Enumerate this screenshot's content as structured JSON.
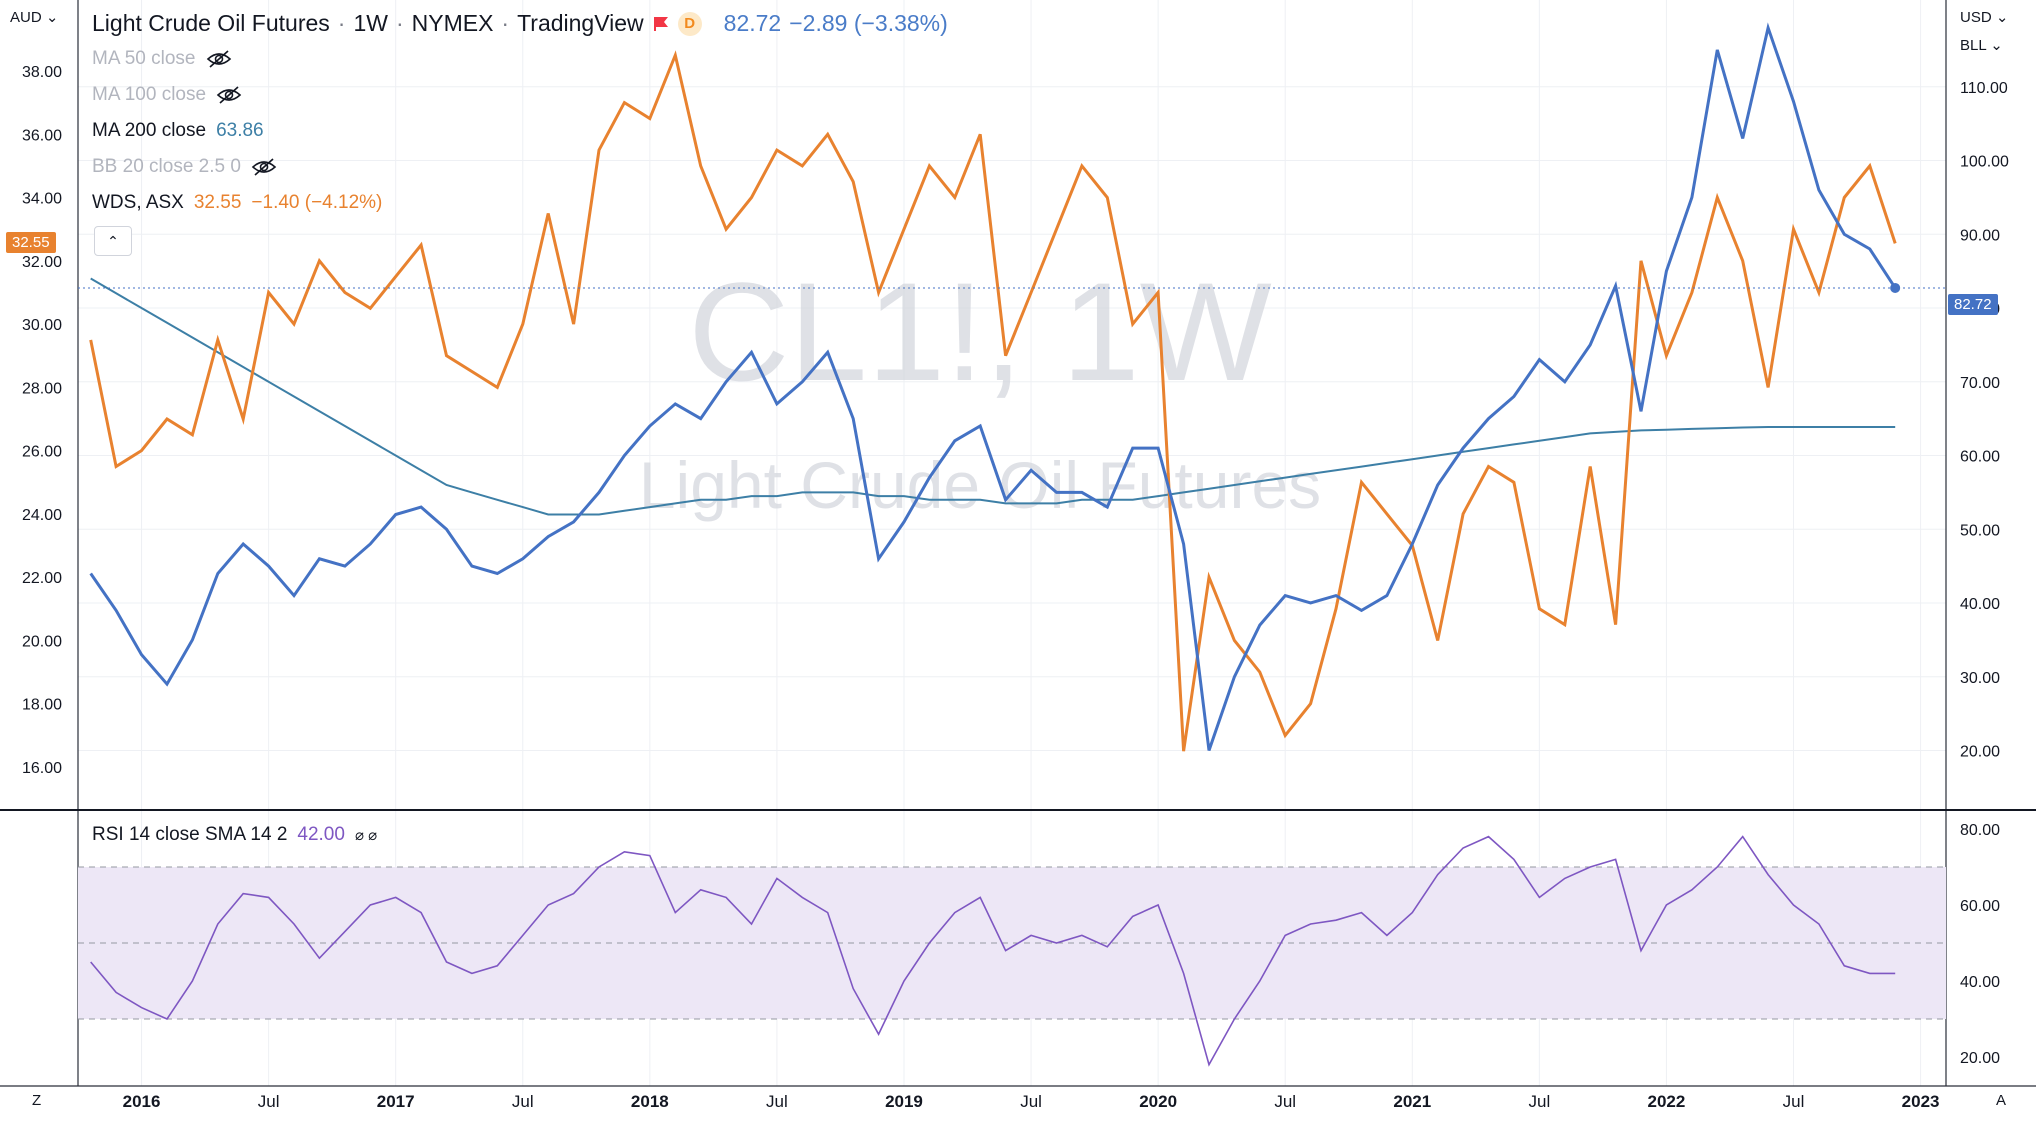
{
  "header": {
    "symbol_name": "Light Crude Oil Futures",
    "interval": "1W",
    "exchange": "NYMEX",
    "source": "TradingView",
    "badge_letter": "D",
    "last": "82.72",
    "change": "−2.89 (−3.38%)"
  },
  "indicators": [
    {
      "label": "MA 50 close",
      "visible": false
    },
    {
      "label": "MA 100 close",
      "visible": false
    },
    {
      "label": "MA 200 close",
      "value": "63.86",
      "visible": true
    },
    {
      "label": "BB 20 close 2.5 0",
      "visible": false
    }
  ],
  "compare": {
    "label": "WDS, ASX",
    "value": "32.55",
    "change": "−1.40 (−4.12%)"
  },
  "watermark": {
    "line1": "CL1!, 1W",
    "line2": "Light Crude Oil Futures"
  },
  "axes": {
    "left_currency": "AUD",
    "right_currency": "USD",
    "right_unit": "BLL",
    "left_ticks": [
      "38.00",
      "36.00",
      "34.00",
      "32.00",
      "30.00",
      "28.00",
      "26.00",
      "24.00",
      "22.00",
      "20.00",
      "18.00",
      "16.00"
    ],
    "right_ticks": [
      "110.00",
      "100.00",
      "90.00",
      "80.00",
      "70.00",
      "60.00",
      "50.00",
      "40.00",
      "30.00",
      "20.00"
    ],
    "rsi_ticks": [
      "80.00",
      "60.00",
      "40.00",
      "20.00"
    ],
    "x_ticks": [
      "2016",
      "Jul",
      "2017",
      "Jul",
      "2018",
      "Jul",
      "2019",
      "Jul",
      "2020",
      "Jul",
      "2021",
      "Jul",
      "2022",
      "Jul",
      "2023"
    ],
    "left_price_tag": "32.55",
    "right_price_tag": "82.72"
  },
  "rsi": {
    "label": "RSI 14 close SMA 14 2",
    "value": "42.00",
    "symbols": "⌀ ⌀",
    "band_upper": 70,
    "band_mid": 50,
    "band_lower": 30
  },
  "controls": {
    "bottom_left": "Z",
    "bottom_right": "A"
  },
  "colors": {
    "crude": "#4472c4",
    "wds": "#e8822f",
    "ma200": "#3d7fa6",
    "rsi": "#7e57c2",
    "rsi_band": "#ede7f6",
    "text_faded": "#b2b5be"
  },
  "chart_data": {
    "type": "line",
    "x": [
      2015.8,
      2015.9,
      2016.0,
      2016.1,
      2016.2,
      2016.3,
      2016.4,
      2016.5,
      2016.6,
      2016.7,
      2016.8,
      2016.9,
      2017.0,
      2017.1,
      2017.2,
      2017.3,
      2017.4,
      2017.5,
      2017.6,
      2017.7,
      2017.8,
      2017.9,
      2018.0,
      2018.1,
      2018.2,
      2018.3,
      2018.4,
      2018.5,
      2018.6,
      2018.7,
      2018.8,
      2018.9,
      2019.0,
      2019.1,
      2019.2,
      2019.3,
      2019.4,
      2019.5,
      2019.6,
      2019.7,
      2019.8,
      2019.9,
      2020.0,
      2020.1,
      2020.2,
      2020.3,
      2020.4,
      2020.5,
      2020.6,
      2020.7,
      2020.8,
      2020.9,
      2021.0,
      2021.1,
      2021.2,
      2021.3,
      2021.4,
      2021.5,
      2021.6,
      2021.7,
      2021.8,
      2021.9,
      2022.0,
      2022.1,
      2022.2,
      2022.3,
      2022.4,
      2022.5,
      2022.6,
      2022.7,
      2022.8,
      2022.9
    ],
    "series": [
      {
        "name": "Light Crude Oil Futures",
        "axis": "right",
        "values": [
          44,
          39,
          33,
          29,
          35,
          44,
          48,
          45,
          41,
          46,
          45,
          48,
          52,
          53,
          50,
          45,
          44,
          46,
          49,
          51,
          55,
          60,
          64,
          67,
          65,
          70,
          74,
          67,
          70,
          74,
          65,
          46,
          51,
          57,
          62,
          64,
          54,
          58,
          55,
          55,
          53,
          61,
          61,
          48,
          20,
          30,
          37,
          41,
          40,
          41,
          39,
          41,
          48,
          56,
          61,
          65,
          68,
          73,
          70,
          75,
          83,
          66,
          85,
          95,
          115,
          103,
          118,
          108,
          96,
          90,
          88,
          82.72
        ]
      },
      {
        "name": "WDS, ASX",
        "axis": "left",
        "values": [
          29.5,
          25.5,
          26,
          27,
          26.5,
          29.5,
          27,
          31,
          30,
          32,
          31,
          30.5,
          31.5,
          32.5,
          29,
          28.5,
          28,
          30,
          33.5,
          30,
          35.5,
          37,
          36.5,
          38.5,
          35,
          33,
          34,
          35.5,
          35,
          36,
          34.5,
          31,
          33,
          35,
          34,
          36,
          29,
          31,
          33,
          35,
          34,
          30,
          31,
          16.5,
          22,
          20,
          19,
          17,
          18,
          21,
          25,
          24,
          23,
          20,
          24,
          25.5,
          25,
          21,
          20.5,
          25.5,
          20.5,
          32,
          29,
          31,
          34,
          32,
          28,
          33,
          31,
          34,
          35,
          32.55
        ]
      },
      {
        "name": "MA 200 close",
        "axis": "right",
        "values": [
          84,
          82,
          80,
          78,
          76,
          74,
          72,
          70,
          68,
          66,
          64,
          62,
          60,
          58,
          56,
          55,
          54,
          53,
          52,
          52,
          52,
          52.5,
          53,
          53.5,
          54,
          54,
          54.5,
          54.5,
          55,
          55,
          55,
          54.5,
          54.5,
          54,
          54,
          54,
          53.5,
          53.5,
          53.5,
          54,
          54,
          54,
          54.5,
          55,
          55.5,
          56,
          56.5,
          57,
          57.5,
          58,
          58.5,
          59,
          59.5,
          60,
          60.5,
          61,
          61.5,
          62,
          62.5,
          63,
          63.2,
          63.4,
          63.5,
          63.6,
          63.7,
          63.8,
          63.86,
          63.86,
          63.86,
          63.86,
          63.86,
          63.86
        ]
      }
    ],
    "rsi": [
      45,
      37,
      33,
      30,
      40,
      55,
      63,
      62,
      55,
      46,
      53,
      60,
      62,
      58,
      45,
      42,
      44,
      52,
      60,
      63,
      70,
      74,
      73,
      58,
      64,
      62,
      55,
      67,
      62,
      58,
      38,
      26,
      40,
      50,
      58,
      62,
      48,
      52,
      50,
      52,
      49,
      57,
      60,
      42,
      18,
      30,
      40,
      52,
      55,
      56,
      58,
      52,
      58,
      68,
      75,
      78,
      72,
      62,
      67,
      70,
      72,
      48,
      60,
      64,
      70,
      78,
      68,
      60,
      55,
      44,
      42,
      42
    ]
  }
}
